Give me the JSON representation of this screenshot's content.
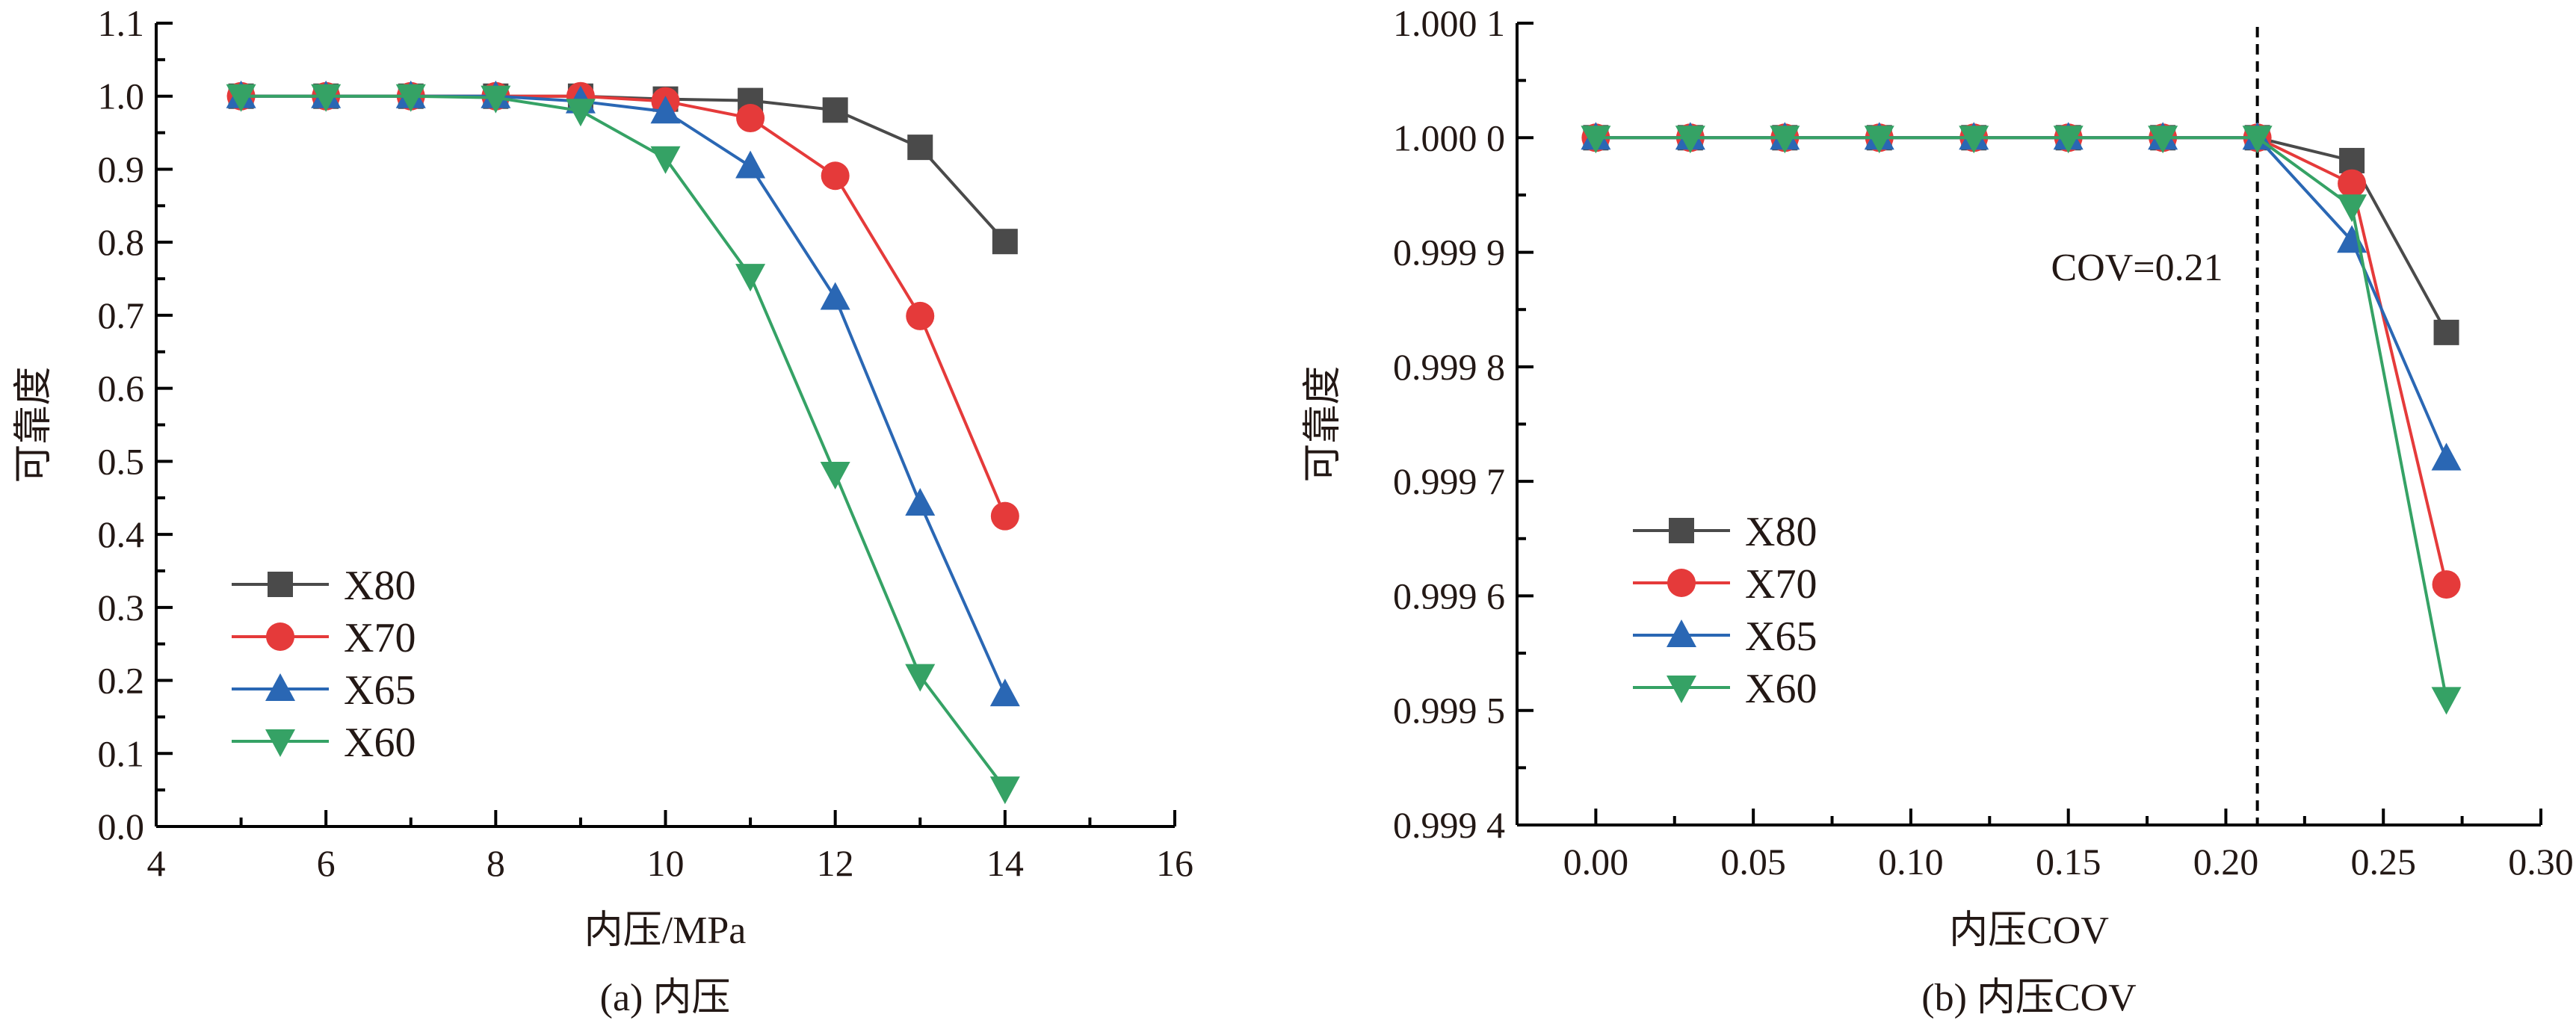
{
  "colors": {
    "X80": "#4a4a4a",
    "X70": "#e53a3a",
    "X65": "#2a67b4",
    "X60": "#35a265",
    "axis": "#000000"
  },
  "chart_data": [
    {
      "type": "line",
      "caption": "(a) 内压",
      "xlabel": "内压/MPa",
      "ylabel": "可靠度",
      "xlim": [
        4,
        16
      ],
      "ylim": [
        0,
        1.1
      ],
      "xticks": [
        4,
        6,
        8,
        10,
        12,
        14,
        16
      ],
      "xtick_labels": [
        "4",
        "6",
        "8",
        "10",
        "12",
        "14",
        "16"
      ],
      "yticks": [
        0,
        0.1,
        0.2,
        0.3,
        0.4,
        0.5,
        0.6,
        0.7,
        0.8,
        0.9,
        1.0,
        1.1
      ],
      "ytick_labels": [
        "0.0",
        "0.1",
        "0.2",
        "0.3",
        "0.4",
        "0.5",
        "0.6",
        "0.7",
        "0.8",
        "0.9",
        "1.0",
        "1.1"
      ],
      "legend_position": "bottom-left",
      "x": [
        5,
        6,
        7,
        8,
        9,
        10,
        11,
        12,
        13,
        14
      ],
      "series": [
        {
          "name": "X80",
          "marker": "square",
          "values": [
            1.0,
            1.0,
            1.0,
            1.0,
            1.0,
            0.996,
            0.994,
            0.981,
            0.93,
            0.801
          ]
        },
        {
          "name": "X70",
          "marker": "circle",
          "values": [
            1.0,
            1.0,
            1.0,
            1.0,
            1.0,
            0.993,
            0.97,
            0.891,
            0.699,
            0.425
          ]
        },
        {
          "name": "X65",
          "marker": "triangle-up",
          "values": [
            1.0,
            1.0,
            1.0,
            1.0,
            0.993,
            0.979,
            0.904,
            0.724,
            0.442,
            0.181
          ]
        },
        {
          "name": "X60",
          "marker": "triangle-down",
          "values": [
            1.0,
            1.0,
            1.0,
            0.998,
            0.98,
            0.915,
            0.754,
            0.483,
            0.206,
            0.052
          ]
        }
      ]
    },
    {
      "type": "line",
      "caption": "(b) 内压COV",
      "xlabel": "内压COV",
      "ylabel": "可靠度",
      "xlim": [
        -0.025,
        0.3
      ],
      "ylim": [
        0.9994,
        1.0001
      ],
      "xticks": [
        0.0,
        0.05,
        0.1,
        0.15,
        0.2,
        0.25,
        0.3
      ],
      "xtick_labels": [
        "0.00",
        "0.05",
        "0.10",
        "0.15",
        "0.20",
        "0.25",
        "0.30"
      ],
      "yticks": [
        0.9994,
        0.9995,
        0.9996,
        0.9997,
        0.9998,
        0.9999,
        1.0,
        1.0001
      ],
      "ytick_labels": [
        "0.999 4",
        "0.999 5",
        "0.999 6",
        "0.999 7",
        "0.999 8",
        "0.999 9",
        "1.000 0",
        "1.000 1"
      ],
      "legend_position": "bottom-left",
      "annotation": {
        "text": "COV=0.21",
        "x": 0.21
      },
      "x": [
        0.0,
        0.03,
        0.06,
        0.09,
        0.12,
        0.15,
        0.18,
        0.21,
        0.24,
        0.27
      ],
      "series": [
        {
          "name": "X80",
          "marker": "square",
          "values": [
            1.0,
            1.0,
            1.0,
            1.0,
            1.0,
            1.0,
            1.0,
            1.0,
            0.99998,
            0.99983
          ]
        },
        {
          "name": "X70",
          "marker": "circle",
          "values": [
            1.0,
            1.0,
            1.0,
            1.0,
            1.0,
            1.0,
            1.0,
            1.0,
            0.99996,
            0.99961
          ]
        },
        {
          "name": "X65",
          "marker": "triangle-up",
          "values": [
            1.0,
            1.0,
            1.0,
            1.0,
            1.0,
            1.0,
            1.0,
            1.0,
            0.99991,
            0.99972
          ]
        },
        {
          "name": "X60",
          "marker": "triangle-down",
          "values": [
            1.0,
            1.0,
            1.0,
            1.0,
            1.0,
            1.0,
            1.0,
            1.0,
            0.99994,
            0.99951
          ]
        }
      ]
    }
  ]
}
